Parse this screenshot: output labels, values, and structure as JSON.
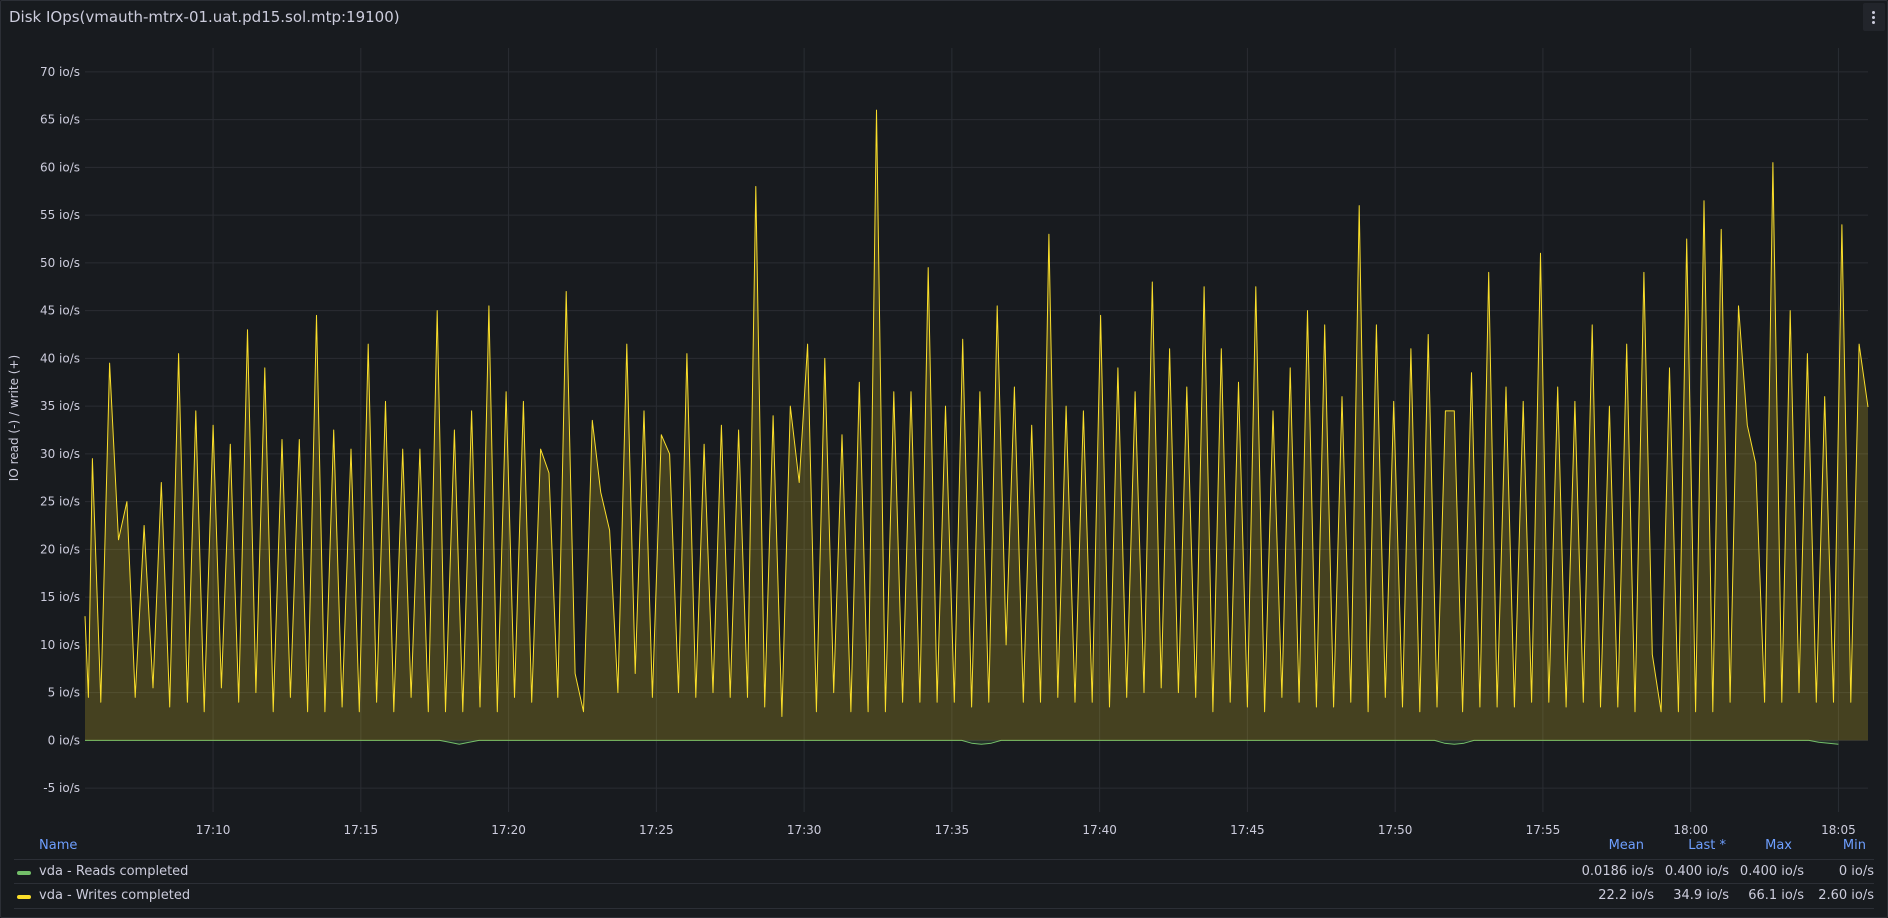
{
  "panel": {
    "title": "Disk IOps(vmauth-mtrx-01.uat.pd15.sol.mtp:19100)"
  },
  "legend": {
    "headers": {
      "name": "Name",
      "mean": "Mean",
      "last": "Last *",
      "max": "Max",
      "min": "Min"
    },
    "rows": [
      {
        "name": "vda - Reads completed",
        "color": "#73bf69",
        "mean": "0.0186 io/s",
        "last": "0.400 io/s",
        "max": "0.400 io/s",
        "min": "0 io/s"
      },
      {
        "name": "vda - Writes completed",
        "color": "#fade2a",
        "mean": "22.2 io/s",
        "last": "34.9 io/s",
        "max": "66.1 io/s",
        "min": "2.60 io/s"
      }
    ]
  },
  "chart_data": {
    "type": "area",
    "ylabel": "IO read (-) / write (+)",
    "ylim": [
      -7.5,
      72.5
    ],
    "yticks": [
      -5,
      0,
      5,
      10,
      15,
      20,
      25,
      30,
      35,
      40,
      45,
      50,
      55,
      60,
      65,
      70
    ],
    "ytick_labels": [
      "-5 io/s",
      "0 io/s",
      "5 io/s",
      "10 io/s",
      "15 io/s",
      "20 io/s",
      "25 io/s",
      "30 io/s",
      "35 io/s",
      "40 io/s",
      "45 io/s",
      "50 io/s",
      "55 io/s",
      "60 io/s",
      "65 io/s",
      "70 io/s"
    ],
    "xrange": [
      "17:05:40",
      "18:06:00"
    ],
    "xticks": [
      "17:10",
      "17:15",
      "17:20",
      "17:25",
      "17:30",
      "17:35",
      "17:40",
      "17:45",
      "17:50",
      "17:55",
      "18:00",
      "18:05"
    ],
    "grid": true,
    "legend_placement": "bottom",
    "series": [
      {
        "name": "vda - Reads completed",
        "color": "#73bf69",
        "points": [
          [
            "17:05:40",
            0
          ],
          [
            "17:17:40",
            0
          ],
          [
            "17:18:00",
            -0.2
          ],
          [
            "17:18:20",
            -0.4
          ],
          [
            "17:18:40",
            -0.2
          ],
          [
            "17:19:00",
            0
          ],
          [
            "17:35:20",
            0
          ],
          [
            "17:35:40",
            -0.3
          ],
          [
            "17:36:00",
            -0.4
          ],
          [
            "17:36:20",
            -0.3
          ],
          [
            "17:36:40",
            0
          ],
          [
            "17:51:20",
            0
          ],
          [
            "17:51:40",
            -0.3
          ],
          [
            "17:52:00",
            -0.4
          ],
          [
            "17:52:20",
            -0.3
          ],
          [
            "17:52:40",
            0
          ],
          [
            "18:04:00",
            0
          ],
          [
            "18:04:20",
            -0.2
          ],
          [
            "18:04:40",
            -0.3
          ],
          [
            "18:05:00",
            -0.4
          ]
        ]
      },
      {
        "name": "vda - Writes completed",
        "color": "#fade2a",
        "points": [
          [
            "17:05:40",
            13
          ],
          [
            "17:05:47",
            4.5
          ],
          [
            "17:05:55",
            29.5
          ],
          [
            "17:06:12",
            4
          ],
          [
            "17:06:30",
            39.5
          ],
          [
            "17:06:48",
            21
          ],
          [
            "17:07:05",
            25
          ],
          [
            "17:07:22",
            4.5
          ],
          [
            "17:07:40",
            22.5
          ],
          [
            "17:07:58",
            5.5
          ],
          [
            "17:08:15",
            27
          ],
          [
            "17:08:32",
            3.5
          ],
          [
            "17:08:50",
            40.5
          ],
          [
            "17:09:08",
            4
          ],
          [
            "17:09:25",
            34.5
          ],
          [
            "17:09:42",
            3
          ],
          [
            "17:10:00",
            33
          ],
          [
            "17:10:17",
            5.5
          ],
          [
            "17:10:35",
            31
          ],
          [
            "17:10:52",
            4
          ],
          [
            "17:11:10",
            43
          ],
          [
            "17:11:27",
            5
          ],
          [
            "17:11:45",
            39
          ],
          [
            "17:12:02",
            3
          ],
          [
            "17:12:20",
            31.5
          ],
          [
            "17:12:37",
            4.5
          ],
          [
            "17:12:55",
            31.5
          ],
          [
            "17:13:12",
            3
          ],
          [
            "17:13:30",
            44.5
          ],
          [
            "17:13:47",
            3
          ],
          [
            "17:14:05",
            32.5
          ],
          [
            "17:14:22",
            3.5
          ],
          [
            "17:14:40",
            30.5
          ],
          [
            "17:14:57",
            3
          ],
          [
            "17:15:15",
            41.5
          ],
          [
            "17:15:32",
            4
          ],
          [
            "17:15:50",
            35.5
          ],
          [
            "17:16:07",
            3
          ],
          [
            "17:16:25",
            30.5
          ],
          [
            "17:16:42",
            4.5
          ],
          [
            "17:17:00",
            30.5
          ],
          [
            "17:17:17",
            3
          ],
          [
            "17:17:35",
            45
          ],
          [
            "17:17:52",
            3
          ],
          [
            "17:18:10",
            32.5
          ],
          [
            "17:18:27",
            3
          ],
          [
            "17:18:45",
            34.5
          ],
          [
            "17:19:02",
            3.5
          ],
          [
            "17:19:20",
            45.5
          ],
          [
            "17:19:37",
            3
          ],
          [
            "17:19:55",
            36.5
          ],
          [
            "17:20:12",
            4.5
          ],
          [
            "17:20:30",
            35.5
          ],
          [
            "17:20:47",
            4
          ],
          [
            "17:21:05",
            30.5
          ],
          [
            "17:21:22",
            28
          ],
          [
            "17:21:40",
            4.5
          ],
          [
            "17:21:57",
            47
          ],
          [
            "17:22:15",
            7
          ],
          [
            "17:22:32",
            3
          ],
          [
            "17:22:50",
            33.5
          ],
          [
            "17:23:07",
            26
          ],
          [
            "17:23:25",
            22
          ],
          [
            "17:23:42",
            5
          ],
          [
            "17:24:00",
            41.5
          ],
          [
            "17:24:17",
            7
          ],
          [
            "17:24:35",
            34.5
          ],
          [
            "17:24:52",
            4.5
          ],
          [
            "17:25:10",
            32
          ],
          [
            "17:25:27",
            30
          ],
          [
            "17:25:45",
            5
          ],
          [
            "17:26:02",
            40.5
          ],
          [
            "17:26:20",
            4.5
          ],
          [
            "17:26:37",
            31
          ],
          [
            "17:26:55",
            5
          ],
          [
            "17:27:12",
            33
          ],
          [
            "17:27:30",
            4.5
          ],
          [
            "17:27:47",
            32.5
          ],
          [
            "17:28:05",
            4.5
          ],
          [
            "17:28:22",
            58
          ],
          [
            "17:28:40",
            3.5
          ],
          [
            "17:28:57",
            34
          ],
          [
            "17:29:15",
            2.5
          ],
          [
            "17:29:32",
            35
          ],
          [
            "17:29:50",
            27
          ],
          [
            "17:30:07",
            41.5
          ],
          [
            "17:30:25",
            3
          ],
          [
            "17:30:42",
            40
          ],
          [
            "17:31:00",
            5
          ],
          [
            "17:31:17",
            32
          ],
          [
            "17:31:35",
            3
          ],
          [
            "17:31:52",
            37.5
          ],
          [
            "17:32:10",
            3
          ],
          [
            "17:32:27",
            66
          ],
          [
            "17:32:45",
            3
          ],
          [
            "17:33:02",
            36.5
          ],
          [
            "17:33:20",
            4
          ],
          [
            "17:33:37",
            36.5
          ],
          [
            "17:33:55",
            4
          ],
          [
            "17:34:12",
            49.5
          ],
          [
            "17:34:30",
            4
          ],
          [
            "17:34:47",
            35
          ],
          [
            "17:35:05",
            4
          ],
          [
            "17:35:22",
            42
          ],
          [
            "17:35:40",
            3.5
          ],
          [
            "17:35:57",
            36.5
          ],
          [
            "17:36:15",
            4
          ],
          [
            "17:36:32",
            45.5
          ],
          [
            "17:36:50",
            10
          ],
          [
            "17:37:07",
            37
          ],
          [
            "17:37:25",
            4
          ],
          [
            "17:37:42",
            33
          ],
          [
            "17:38:00",
            4
          ],
          [
            "17:38:17",
            53
          ],
          [
            "17:38:35",
            4.5
          ],
          [
            "17:38:52",
            35
          ],
          [
            "17:39:10",
            4
          ],
          [
            "17:39:27",
            34.5
          ],
          [
            "17:39:45",
            4
          ],
          [
            "17:40:02",
            44.5
          ],
          [
            "17:40:20",
            3.5
          ],
          [
            "17:40:37",
            39
          ],
          [
            "17:40:55",
            4.5
          ],
          [
            "17:41:12",
            36.5
          ],
          [
            "17:41:30",
            5
          ],
          [
            "17:41:47",
            48
          ],
          [
            "17:42:05",
            5.5
          ],
          [
            "17:42:22",
            41
          ],
          [
            "17:42:40",
            5
          ],
          [
            "17:42:57",
            37
          ],
          [
            "17:43:15",
            4.5
          ],
          [
            "17:43:32",
            47.5
          ],
          [
            "17:43:50",
            3
          ],
          [
            "17:44:07",
            41
          ],
          [
            "17:44:25",
            4
          ],
          [
            "17:44:42",
            37.5
          ],
          [
            "17:45:00",
            3.5
          ],
          [
            "17:45:17",
            47.5
          ],
          [
            "17:45:35",
            3
          ],
          [
            "17:45:52",
            34.5
          ],
          [
            "17:46:10",
            4.5
          ],
          [
            "17:46:27",
            39
          ],
          [
            "17:46:45",
            4
          ],
          [
            "17:47:02",
            45
          ],
          [
            "17:47:20",
            3.5
          ],
          [
            "17:47:37",
            43.5
          ],
          [
            "17:47:55",
            3.5
          ],
          [
            "17:48:12",
            36
          ],
          [
            "17:48:30",
            4
          ],
          [
            "17:48:47",
            56
          ],
          [
            "17:49:05",
            3
          ],
          [
            "17:49:22",
            43.5
          ],
          [
            "17:49:40",
            4.5
          ],
          [
            "17:49:57",
            35.5
          ],
          [
            "17:50:15",
            3.5
          ],
          [
            "17:50:32",
            41
          ],
          [
            "17:50:50",
            3
          ],
          [
            "17:51:07",
            42.5
          ],
          [
            "17:51:25",
            3.5
          ],
          [
            "17:51:42",
            34.5
          ],
          [
            "17:52:00",
            34.5
          ],
          [
            "17:52:17",
            3
          ],
          [
            "17:52:35",
            38.5
          ],
          [
            "17:52:52",
            3.5
          ],
          [
            "17:53:10",
            49
          ],
          [
            "17:53:27",
            3.5
          ],
          [
            "17:53:45",
            37
          ],
          [
            "17:54:02",
            3.5
          ],
          [
            "17:54:20",
            35.5
          ],
          [
            "17:54:37",
            4
          ],
          [
            "17:54:55",
            51
          ],
          [
            "17:55:12",
            4
          ],
          [
            "17:55:30",
            37
          ],
          [
            "17:55:47",
            3.5
          ],
          [
            "17:56:05",
            35.5
          ],
          [
            "17:56:22",
            4
          ],
          [
            "17:56:40",
            43.5
          ],
          [
            "17:56:57",
            3.5
          ],
          [
            "17:57:15",
            35
          ],
          [
            "17:57:32",
            3.5
          ],
          [
            "17:57:50",
            41.5
          ],
          [
            "17:58:07",
            3
          ],
          [
            "17:58:25",
            49
          ],
          [
            "17:58:42",
            9
          ],
          [
            "17:59:00",
            3
          ],
          [
            "17:59:17",
            39
          ],
          [
            "17:59:35",
            3
          ],
          [
            "17:59:52",
            52.5
          ],
          [
            "18:00:10",
            3
          ],
          [
            "18:00:27",
            56.5
          ],
          [
            "18:00:45",
            3
          ],
          [
            "18:01:02",
            53.5
          ],
          [
            "18:01:20",
            4
          ],
          [
            "18:01:37",
            45.5
          ],
          [
            "18:01:55",
            33
          ],
          [
            "18:02:12",
            29
          ],
          [
            "18:02:30",
            4
          ],
          [
            "18:02:47",
            60.5
          ],
          [
            "18:03:05",
            4
          ],
          [
            "18:03:22",
            45
          ],
          [
            "18:03:40",
            5
          ],
          [
            "18:03:57",
            40.5
          ],
          [
            "18:04:15",
            4
          ],
          [
            "18:04:32",
            36
          ],
          [
            "18:04:50",
            4
          ],
          [
            "18:05:07",
            54
          ],
          [
            "18:05:25",
            4
          ],
          [
            "18:05:42",
            41.5
          ],
          [
            "18:06:00",
            34.9
          ]
        ]
      }
    ]
  }
}
